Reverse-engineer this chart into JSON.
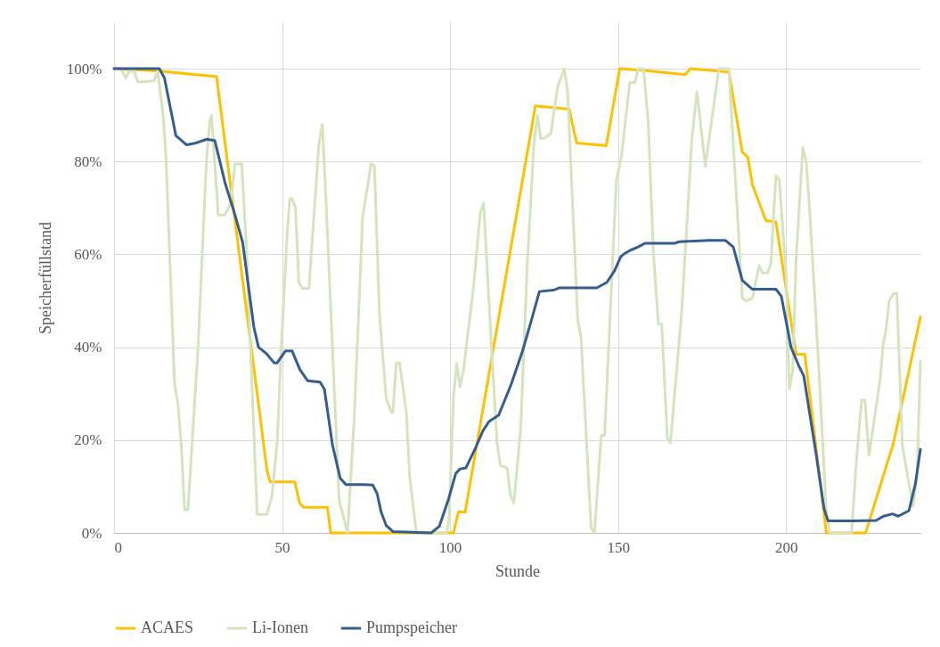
{
  "chart_data": {
    "type": "line",
    "xlabel": "Stunde",
    "ylabel": "Speicherfüllstand",
    "xlim": [
      0,
      240
    ],
    "xticks": [
      0,
      50,
      100,
      150,
      200
    ],
    "ylim": [
      0,
      110
    ],
    "yticks": [
      {
        "value": 0,
        "label": "0%"
      },
      {
        "value": 20,
        "label": "20%"
      },
      {
        "value": 40,
        "label": "40%"
      },
      {
        "value": 60,
        "label": "60%"
      },
      {
        "value": 80,
        "label": "80%"
      },
      {
        "value": 100,
        "label": "100%"
      }
    ],
    "grid": true,
    "legend": "bottom",
    "marker": "none",
    "line_style": "solid",
    "series": [
      {
        "name": "ACAES",
        "color": "#ffc000",
        "x": [
          0,
          13.5,
          30.5,
          45.5,
          46.4,
          53.8,
          55.2,
          56.4,
          63.5,
          64.5,
          101,
          102.5,
          104.5,
          125.4,
          135.5,
          136.3,
          137.7,
          146.5,
          150.5,
          157,
          170,
          171.6,
          183,
          187,
          188.6,
          190,
          194,
          197,
          203,
          205.6,
          212,
          223.7,
          232,
          240
        ],
        "values": [
          100,
          99.5,
          98.3,
          13.6,
          11,
          11,
          6.5,
          5.5,
          5.5,
          0,
          0,
          4.5,
          4.5,
          92,
          91.3,
          88.5,
          84,
          83.4,
          100,
          99.7,
          98.7,
          100,
          99.3,
          82,
          81,
          75,
          67.3,
          67,
          38.5,
          38.5,
          0,
          0,
          19.4,
          46.5
        ]
      },
      {
        "name": "Li-Ionen",
        "color": "#d6e4bd",
        "x": [
          0,
          2,
          3.5,
          4.5,
          6,
          7,
          9.5,
          12,
          13,
          14.6,
          15.5,
          18,
          19,
          20,
          21,
          22,
          25,
          27.5,
          28.5,
          29,
          31,
          33,
          34.7,
          36,
          38,
          39.5,
          42.6,
          45.5,
          47,
          48.6,
          49.5,
          51.5,
          52.3,
          53,
          54,
          55,
          56,
          58,
          61,
          62,
          63,
          67,
          69.5,
          71.5,
          74,
          76.5,
          77.5,
          79,
          81,
          82.5,
          83,
          84,
          85,
          87,
          88,
          90,
          99,
          99.7,
          101,
          102,
          103,
          104,
          107,
          109,
          110,
          112.5,
          114,
          115,
          117,
          118,
          119,
          121,
          123,
          125,
          126,
          127,
          128,
          130,
          132,
          134,
          135,
          138,
          139,
          142,
          143,
          145,
          146,
          149.5,
          151,
          153.5,
          155,
          156,
          157.6,
          159,
          160.5,
          162,
          163,
          164.7,
          165.6,
          169,
          172,
          173.5,
          176,
          180,
          183,
          187,
          188,
          190,
          192,
          193,
          194.5,
          195.5,
          197,
          198,
          200,
          201,
          202,
          203,
          205,
          206,
          207,
          209.5,
          212,
          213,
          219.5,
          221,
          222.5,
          223.5,
          224.7,
          228,
          229,
          229.8,
          230.7,
          232,
          233,
          234.6,
          236.5,
          237.8,
          239,
          240
        ],
        "values": [
          100,
          100,
          98,
          99.5,
          99.5,
          97.2,
          97.2,
          97.5,
          99.5,
          90,
          80.5,
          32,
          28,
          19,
          5,
          5,
          40,
          80,
          89,
          90,
          68.5,
          68.5,
          71,
          79.5,
          79.5,
          60,
          4,
          4,
          8,
          20,
          36,
          64,
          72,
          72,
          70,
          54,
          52.7,
          52.7,
          84,
          88,
          73,
          7,
          0,
          25,
          68,
          79.5,
          79,
          47,
          29,
          26,
          26,
          36.6,
          36.6,
          26,
          12,
          0,
          0,
          3,
          29,
          36.5,
          31.5,
          35,
          53,
          69,
          71,
          38,
          19.5,
          14.5,
          14,
          8,
          6.5,
          22,
          58,
          84,
          90,
          85,
          85,
          86,
          96,
          100,
          95,
          46,
          42,
          1,
          0,
          21,
          21,
          76,
          81,
          97,
          97,
          100,
          100,
          88.5,
          61,
          45,
          45,
          20.3,
          19.4,
          48,
          85,
          95,
          79,
          100,
          100,
          50.6,
          50,
          50.5,
          57.6,
          56,
          56,
          58,
          77,
          76,
          56,
          31,
          35,
          59,
          83,
          80,
          70,
          39,
          4.6,
          0,
          0,
          16,
          28.6,
          28.6,
          16.7,
          33,
          41,
          44,
          50,
          51.6,
          51.6,
          19,
          11,
          5.7,
          12,
          37
        ]
      },
      {
        "name": "Pumpspeicher",
        "color": "#355d8e",
        "x": [
          0,
          13.5,
          15,
          18.4,
          21.6,
          24.4,
          27.6,
          30,
          33,
          36,
          38.3,
          41.6,
          43,
          45.4,
          47.7,
          48.5,
          51,
          53,
          55.3,
          57.6,
          61.3,
          62.6,
          65,
          67.3,
          69,
          74.4,
          77,
          78.3,
          79.5,
          81,
          83,
          94.4,
          96.8,
          99.6,
          101.7,
          103,
          104.7,
          107.4,
          109.8,
          111.6,
          114.5,
          118.2,
          121.5,
          124.3,
          126.6,
          130.8,
          132.6,
          143.7,
          146.7,
          149,
          150.8,
          152,
          154,
          156,
          158,
          167,
          168,
          177,
          182,
          184.3,
          187,
          190,
          197,
          198.6,
          201.5,
          203.8,
          205.3,
          209,
          211.3,
          212.5,
          220,
          226.8,
          229,
          231.7,
          233.4,
          236.6,
          238.5,
          240
        ],
        "values": [
          100,
          100,
          98,
          85.6,
          83.6,
          84,
          84.8,
          84.5,
          75.5,
          68.5,
          62.5,
          44.4,
          40,
          38.6,
          36.6,
          36.6,
          39.2,
          39.2,
          35.2,
          32.8,
          32.5,
          31,
          19,
          11.8,
          10.4,
          10.4,
          10.3,
          8.5,
          4.5,
          1.6,
          0.3,
          0,
          1.4,
          7.4,
          12.8,
          13.8,
          14,
          18,
          22,
          24,
          25.4,
          32,
          39,
          46,
          52,
          52.3,
          52.8,
          52.8,
          54,
          56.5,
          59.5,
          60.2,
          61,
          61.6,
          62.4,
          62.4,
          62.7,
          63,
          63,
          61.6,
          54.4,
          52.5,
          52.5,
          51,
          40,
          36,
          33.8,
          16.8,
          5.3,
          2.6,
          2.6,
          2.7,
          3.6,
          4.1,
          3.6,
          4.8,
          10.6,
          18
        ]
      }
    ]
  }
}
